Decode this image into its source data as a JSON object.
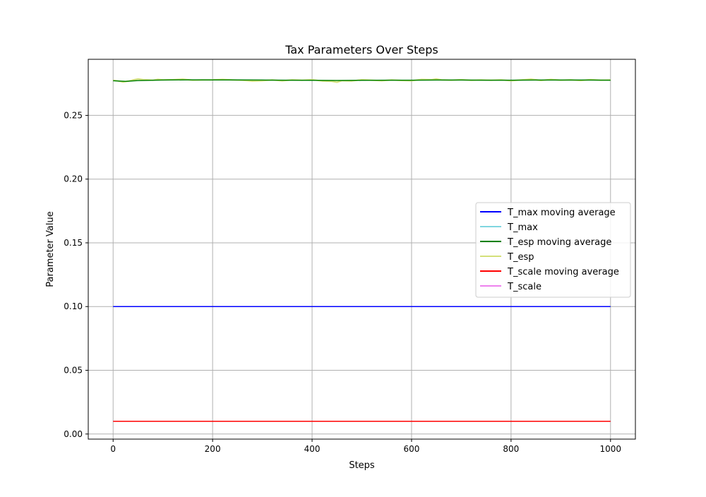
{
  "chart_data": {
    "type": "line",
    "title": "Tax Parameters Over Steps",
    "xlabel": "Steps",
    "ylabel": "Parameter Value",
    "xlim": [
      -50,
      1050
    ],
    "ylim": [
      -0.004,
      0.294
    ],
    "xticks": [
      0,
      200,
      400,
      600,
      800,
      1000
    ],
    "xtick_labels": [
      "0",
      "200",
      "400",
      "600",
      "800",
      "1000"
    ],
    "yticks": [
      0.0,
      0.05,
      0.1,
      0.15,
      0.2,
      0.25
    ],
    "ytick_labels": [
      "0.00",
      "0.05",
      "0.10",
      "0.15",
      "0.20",
      "0.25"
    ],
    "grid": true,
    "legend_position": "center-right",
    "series": [
      {
        "name": "T_max moving average",
        "color": "#0000ff",
        "style": "solid",
        "x": [
          0,
          1000
        ],
        "y": [
          0.1,
          0.1
        ]
      },
      {
        "name": "T_max",
        "color": "#7fd6e0",
        "style": "solid",
        "x": [
          0,
          1000
        ],
        "y": [
          0.1,
          0.1
        ]
      },
      {
        "name": "T_esp moving average",
        "color": "#008000",
        "style": "solid",
        "x": [
          0,
          25,
          50,
          100,
          150,
          200,
          250,
          300,
          350,
          400,
          450,
          500,
          550,
          600,
          650,
          700,
          750,
          800,
          850,
          900,
          950,
          1000
        ],
        "y": [
          0.2772,
          0.2767,
          0.2773,
          0.2777,
          0.2779,
          0.2778,
          0.2778,
          0.2777,
          0.2776,
          0.2775,
          0.2774,
          0.2775,
          0.2776,
          0.2776,
          0.2777,
          0.2777,
          0.2776,
          0.2776,
          0.2777,
          0.2777,
          0.2777,
          0.2776
        ]
      },
      {
        "name": "T_esp",
        "color": "#d4e07a",
        "style": "noisy",
        "x": [
          0,
          10,
          20,
          30,
          40,
          50,
          60,
          70,
          80,
          90,
          100,
          120,
          140,
          160,
          180,
          200,
          220,
          240,
          260,
          280,
          300,
          320,
          340,
          360,
          380,
          400,
          420,
          440,
          450,
          460,
          480,
          500,
          520,
          540,
          560,
          580,
          600,
          620,
          640,
          650,
          660,
          680,
          700,
          720,
          740,
          760,
          780,
          800,
          820,
          840,
          860,
          880,
          900,
          920,
          940,
          960,
          980,
          1000
        ],
        "y": [
          0.2775,
          0.277,
          0.2762,
          0.2768,
          0.2778,
          0.2786,
          0.2781,
          0.2779,
          0.2776,
          0.2783,
          0.2779,
          0.278,
          0.2784,
          0.2776,
          0.2778,
          0.2779,
          0.2782,
          0.2778,
          0.2775,
          0.2769,
          0.2772,
          0.2778,
          0.2771,
          0.2779,
          0.2776,
          0.278,
          0.277,
          0.2767,
          0.276,
          0.2772,
          0.277,
          0.278,
          0.2776,
          0.2772,
          0.2778,
          0.2774,
          0.2772,
          0.2782,
          0.278,
          0.2786,
          0.2779,
          0.2776,
          0.278,
          0.2775,
          0.2778,
          0.2776,
          0.2779,
          0.2772,
          0.2778,
          0.2784,
          0.2774,
          0.2782,
          0.2776,
          0.2779,
          0.2773,
          0.2781,
          0.2776,
          0.2778
        ]
      },
      {
        "name": "T_scale moving average",
        "color": "#ff0000",
        "style": "solid",
        "x": [
          0,
          1000
        ],
        "y": [
          0.01,
          0.01
        ]
      },
      {
        "name": "T_scale",
        "color": "#ee82ee",
        "style": "solid",
        "x": [
          0,
          1000
        ],
        "y": [
          0.01,
          0.01
        ]
      }
    ]
  }
}
